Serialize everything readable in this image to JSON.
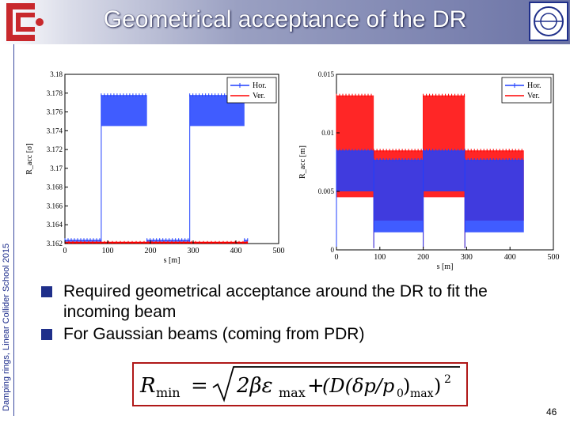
{
  "header": {
    "title": "Geometrical acceptance of the DR"
  },
  "sidebar": {
    "text": "Damping rings, Linear Collider School 2015"
  },
  "chart_data": [
    {
      "type": "line",
      "ylabel": "R_acc [σ]",
      "xlabel": "s [m]",
      "xlim": [
        0,
        500
      ],
      "ylim": [
        3.162,
        3.18
      ],
      "x_ticks": [
        "0",
        "100",
        "200",
        "300",
        "400",
        "500"
      ],
      "y_ticks": [
        "3.162",
        "3.164",
        "3.166",
        "3.168",
        "3.17",
        "3.172",
        "3.174",
        "3.176",
        "3.178",
        "3.18"
      ],
      "legend": [
        "Hor.",
        "Ver."
      ],
      "legend_position": "top-right",
      "series": [
        {
          "name": "Hor.",
          "color": "#1f3fff",
          "segments": [
            {
              "x": [
                0,
                85
              ],
              "y": [
                3.1622,
                3.1622
              ],
              "band": [
                3.1622,
                3.1624
              ]
            },
            {
              "x": [
                85,
                192
              ],
              "y": [
                3.1745,
                3.1778
              ],
              "band": [
                3.1745,
                3.1778
              ]
            },
            {
              "x": [
                192,
                292
              ],
              "y": [
                3.1622,
                3.1622
              ],
              "band": [
                3.1622,
                3.1624
              ]
            },
            {
              "x": [
                292,
                420
              ],
              "y": [
                3.1745,
                3.1778
              ],
              "band": [
                3.1745,
                3.1778
              ]
            },
            {
              "x": [
                420,
                428
              ],
              "y": [
                3.1622,
                3.1622
              ],
              "band": [
                3.1622,
                3.1624
              ]
            }
          ]
        },
        {
          "name": "Ver.",
          "color": "#ff0000",
          "segments": [
            {
              "x": [
                0,
                428
              ],
              "y": [
                3.1621,
                3.1621
              ],
              "band": [
                3.1621,
                3.1621
              ]
            }
          ]
        }
      ]
    },
    {
      "type": "line",
      "ylabel": "R_acc [m]",
      "xlabel": "s [m]",
      "xlim": [
        0,
        500
      ],
      "ylim": [
        0,
        0.015
      ],
      "x_ticks": [
        "0",
        "100",
        "200",
        "300",
        "400",
        "500"
      ],
      "y_ticks": [
        "0",
        "0.005",
        "0.01",
        "0.015"
      ],
      "legend": [
        "Hor.",
        "Ver."
      ],
      "legend_position": "top-right",
      "series": [
        {
          "name": "Ver.",
          "color": "#ff0000",
          "segments": [
            {
              "x": [
                0,
                86
              ],
              "band": [
                0.0045,
                0.0132
              ]
            },
            {
              "x": [
                86,
                200
              ],
              "band": [
                0.0025,
                0.0085
              ]
            },
            {
              "x": [
                200,
                296
              ],
              "band": [
                0.0045,
                0.0132
              ]
            },
            {
              "x": [
                296,
                432
              ],
              "band": [
                0.0025,
                0.0085
              ]
            }
          ]
        },
        {
          "name": "Hor.",
          "color": "#1f3fff",
          "segments": [
            {
              "x": [
                0,
                86
              ],
              "band": [
                0.005,
                0.0085
              ]
            },
            {
              "x": [
                86,
                200
              ],
              "band": [
                0.0015,
                0.0077
              ]
            },
            {
              "x": [
                200,
                296
              ],
              "band": [
                0.005,
                0.0085
              ]
            },
            {
              "x": [
                296,
                432
              ],
              "band": [
                0.0015,
                0.0077
              ]
            }
          ]
        }
      ]
    }
  ],
  "bullets": [
    "Required  geometrical acceptance around the DR to fit the incoming beam",
    "For Gaussian beams (coming from PDR)"
  ],
  "formula": {
    "lhs": "R",
    "lhs_sub": "min",
    "eq": "=",
    "radicand_1": "2βε",
    "radicand_1_sub": "max",
    "plus": "+",
    "paren_term": "(D(δp/p",
    "paren_sub": "0",
    "paren_close": ")",
    "paren_close_sub": "max",
    "paren_end": ")",
    "power": "2"
  },
  "page_number": "46",
  "colors": {
    "hor": "#1f3fff",
    "ver": "#ff0000",
    "header_dark": "#6b73a6",
    "formula_border": "#b01818"
  }
}
